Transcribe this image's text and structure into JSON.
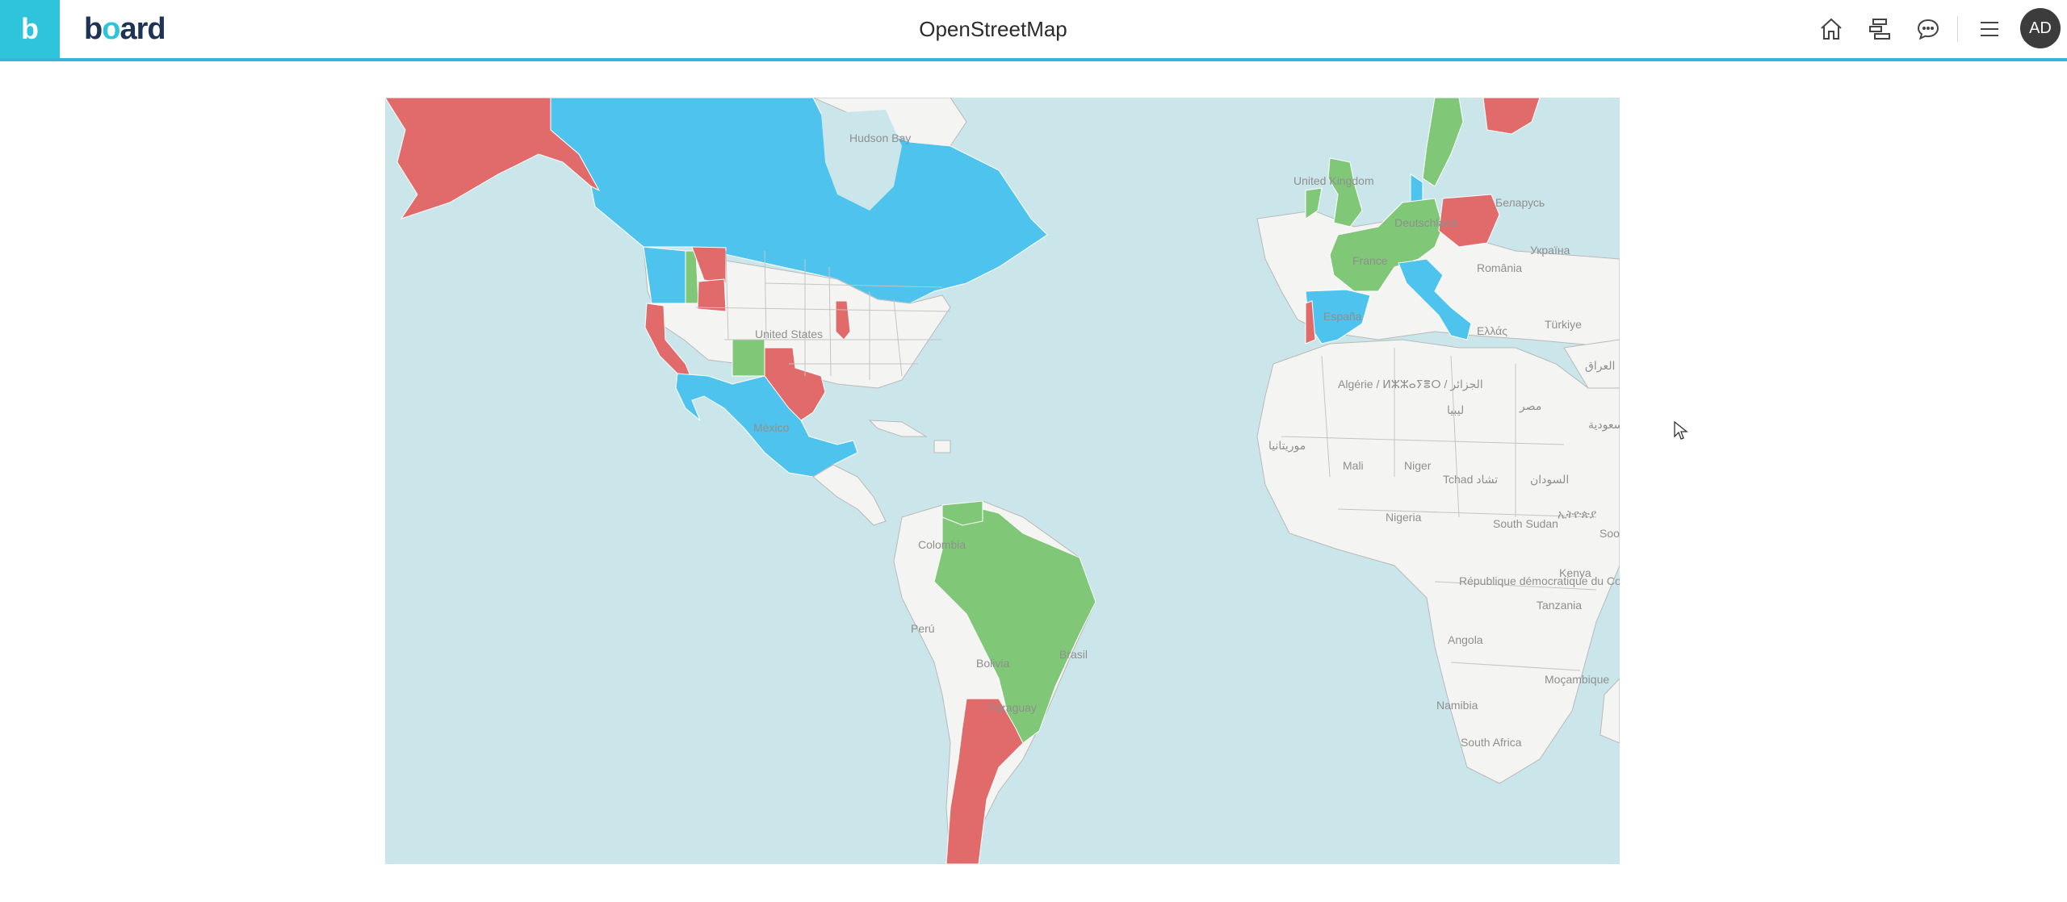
{
  "app": {
    "logo_letter": "b",
    "wordmark_pre": "b",
    "wordmark_o": "o",
    "wordmark_post": "ard"
  },
  "header": {
    "title": "OpenStreetMap"
  },
  "toolbar": {
    "user_initials": "AD"
  },
  "icons": {
    "home": "home-icon",
    "tree": "hierarchy-icon",
    "chat": "chat-icon",
    "menu": "hamburger-menu-icon"
  },
  "colors": {
    "accent": "#2ec4dc",
    "map_red": "#e16b6b",
    "map_blue": "#4dc3ee",
    "map_green": "#80c878",
    "land": "#f4f4f2",
    "water": "#cbe6ea"
  },
  "map": {
    "labels": {
      "hudson_bay": "Hudson Bay",
      "united_states": "United States",
      "mexico": "México",
      "colombia": "Colombia",
      "peru": "Perú",
      "bolivia": "Bolivia",
      "brasil": "Brasil",
      "paraguay": "Paraguay",
      "united_kingdom": "United Kingdom",
      "france": "France",
      "espana": "España",
      "deutschland": "Deutschland",
      "romania": "România",
      "belarus": "Беларусь",
      "ukraine": "Україна",
      "turkiye": "Türkiye",
      "ellas": "Ελλάς",
      "algerie": "Algérie / ⵍⵣⵣⴰⵢⴻⵔ / الجزائر",
      "libya": "ليبيا",
      "egypt": "مصر",
      "iraq": "العراق",
      "saudi": "السعودية",
      "mauritania": "موريتانيا",
      "mali": "Mali",
      "niger": "Niger",
      "tchad": "Tchad تشاد",
      "sudan": "السودان",
      "nigeria": "Nigeria",
      "ethiopia": "ኢትዮጵያ",
      "south_sudan": "South Sudan",
      "rdc": "République démocratique du Congo",
      "kenya": "Kenya",
      "tanzania": "Tanzania",
      "angola": "Angola",
      "namibia": "Namibia",
      "mocambique": "Moçambique",
      "south_africa": "South Africa",
      "somalia": "Soo"
    }
  }
}
